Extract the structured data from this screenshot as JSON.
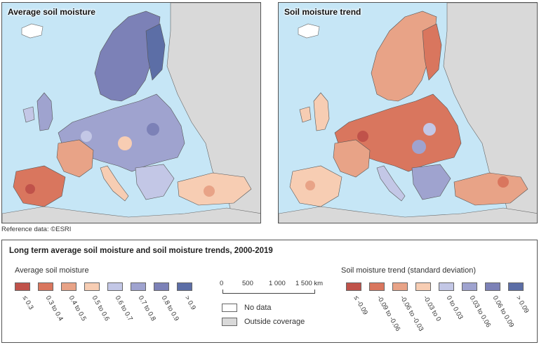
{
  "maps": {
    "left": {
      "title": "Average soil moisture"
    },
    "right": {
      "title": "Soil moisture trend"
    }
  },
  "reference": "Reference data: ©ESRI",
  "legend": {
    "title": "Long term average soil moisture and soil moisture trends, 2000-2019",
    "average": {
      "title": "Average soil moisture",
      "items": [
        {
          "label": "≤ 0.3",
          "color": "#c0524a"
        },
        {
          "label": "0.3 to 0.4",
          "color": "#d9765e"
        },
        {
          "label": "0.4 to 0.5",
          "color": "#e8a387"
        },
        {
          "label": "0.5 to 0.6",
          "color": "#f7cdb3"
        },
        {
          "label": "0.6 to 0.7",
          "color": "#c3c7e6"
        },
        {
          "label": "0.7 to 0.8",
          "color": "#9fa3cf"
        },
        {
          "label": "0.8 to 0.9",
          "color": "#7c81b7"
        },
        {
          "label": "> 0.9",
          "color": "#5c6ea6"
        }
      ]
    },
    "trend": {
      "title": "Soil moisture trend (standard deviation)",
      "items": [
        {
          "label": "≤ -0.09",
          "color": "#c0524a"
        },
        {
          "label": "-0.09 to -0.06",
          "color": "#d9765e"
        },
        {
          "label": "-0.06 to -0.03",
          "color": "#e8a387"
        },
        {
          "label": "-0.03 to 0",
          "color": "#f7cdb3"
        },
        {
          "label": "0 to 0.03",
          "color": "#c3c7e6"
        },
        {
          "label": "0.03 to 0.06",
          "color": "#9fa3cf"
        },
        {
          "label": "0.06 to 0.09",
          "color": "#7c81b7"
        },
        {
          "label": "> 0.09",
          "color": "#5c6ea6"
        }
      ]
    },
    "scale": {
      "labels": [
        "0",
        "500",
        "1 000",
        "1 500 km"
      ]
    },
    "keys": {
      "no_data": "No data",
      "outside": "Outside coverage"
    }
  },
  "colors": {
    "sea": "#c6e6f6",
    "outside": "#d9d9d9",
    "no_data": "#ffffff",
    "border": "#555555"
  }
}
